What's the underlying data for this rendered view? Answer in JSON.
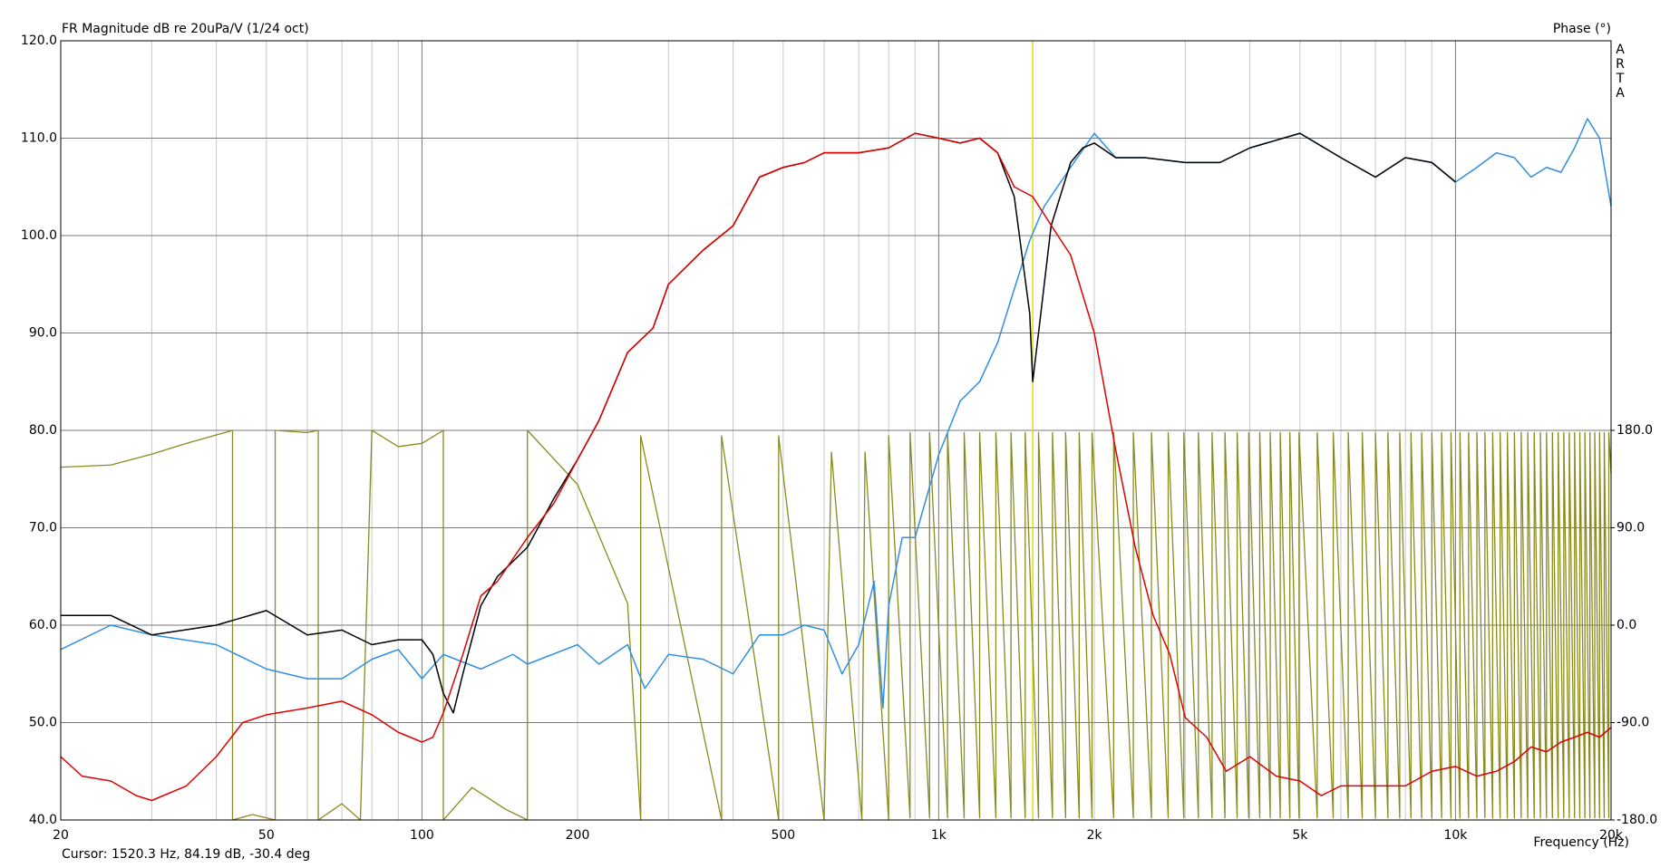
{
  "chart_data": {
    "type": "line",
    "title": "FR Magnitude dB re 20uPa/V (1/24 oct)",
    "y2_label": "Phase (°)",
    "watermark": "ARTA",
    "x_label": "Frequency (Hz)",
    "cursor": {
      "x": 1520.3,
      "label": "Cursor: 1520.3 Hz, 84.19 dB, -30.4 deg",
      "color": "#e0e000"
    },
    "log_x": true,
    "grid": true,
    "xlim": [
      20,
      20000
    ],
    "xticks": [
      20,
      50,
      100,
      200,
      500,
      {
        "value": 1000,
        "label": "1k"
      },
      {
        "value": 2000,
        "label": "2k"
      },
      {
        "value": 5000,
        "label": "5k"
      },
      {
        "value": 10000,
        "label": "10k"
      },
      {
        "value": 20000,
        "label": "20k"
      }
    ],
    "x_grid": [
      30,
      40,
      60,
      70,
      80,
      90,
      300,
      400,
      600,
      700,
      800,
      900,
      3000,
      4000,
      6000,
      7000,
      8000,
      9000
    ],
    "ylim": [
      40,
      120
    ],
    "yticks": [
      {
        "value": 40,
        "label": "40.0"
      },
      {
        "value": 50,
        "label": "50.0"
      },
      {
        "value": 60,
        "label": "60.0"
      },
      {
        "value": 70,
        "label": "70.0"
      },
      {
        "value": 80,
        "label": "80.0"
      },
      {
        "value": 90,
        "label": "90.0"
      },
      {
        "value": 100,
        "label": "100.0"
      },
      {
        "value": 110,
        "label": "110.0"
      },
      {
        "value": 120,
        "label": "120.0"
      }
    ],
    "y2lim": [
      -180,
      540
    ],
    "y2ticks": [
      {
        "value": -180,
        "label": "-180.0"
      },
      {
        "value": -90,
        "label": "-90.0"
      },
      {
        "value": 0,
        "label": "0.0"
      },
      {
        "value": 90,
        "label": "90.0"
      },
      {
        "value": 180,
        "label": "180.0"
      }
    ],
    "series": [
      {
        "color": "#2f8fe0",
        "x": [
          20,
          25,
          30,
          40,
          50,
          60,
          70,
          80,
          90,
          100,
          110,
          130,
          150,
          160,
          200,
          220,
          250,
          270,
          300,
          350,
          400,
          450,
          500,
          550,
          600,
          650,
          700,
          750,
          780,
          800,
          850,
          900,
          1000,
          1100,
          1200,
          1300,
          1400,
          1500,
          1600,
          1800,
          2000,
          2200,
          2500,
          3000,
          3500,
          4000,
          5000,
          6000,
          7000,
          8000,
          9000,
          10000,
          11000,
          12000,
          13000,
          14000,
          15000,
          16000,
          17000,
          18000,
          19000,
          20000
        ],
        "values": [
          57.5,
          60,
          59,
          58,
          55.5,
          54.5,
          54.5,
          56.5,
          57.5,
          54.5,
          57,
          55.5,
          57,
          56,
          58,
          56,
          58,
          53.5,
          57,
          56.5,
          55,
          59,
          59,
          60,
          59.5,
          55,
          58,
          64.5,
          51.5,
          62,
          69,
          69,
          77.5,
          83,
          85,
          89,
          94.5,
          99.5,
          103,
          107,
          110.5,
          108,
          108,
          107.5,
          107.5,
          109,
          110.5,
          108,
          106,
          108,
          107.5,
          105.5,
          107,
          108.5,
          108,
          106,
          107,
          106.5,
          109,
          112,
          110,
          103
        ]
      },
      {
        "color": "#e00000",
        "x": [
          20,
          22,
          25,
          28,
          30,
          35,
          40,
          45,
          50,
          60,
          70,
          80,
          90,
          100,
          105,
          110,
          120,
          130,
          140,
          160,
          180,
          200,
          220,
          250,
          280,
          300,
          350,
          400,
          450,
          500,
          550,
          600,
          700,
          800,
          900,
          1000,
          1100,
          1200,
          1300,
          1400,
          1520,
          1700,
          1800,
          2000,
          2200,
          2400,
          2600,
          2800,
          3000,
          3300,
          3600,
          4000,
          4500,
          5000,
          5500,
          6000,
          7000,
          8000,
          9000,
          10000,
          11000,
          12000,
          13000,
          14000,
          15000,
          16000,
          17000,
          18000,
          19000,
          20000
        ],
        "values": [
          46.5,
          44.5,
          44,
          42.5,
          42,
          43.5,
          46.5,
          50,
          50.8,
          51.5,
          52.2,
          50.8,
          49,
          48,
          48.5,
          51,
          57,
          63,
          64.5,
          69,
          72.5,
          77,
          81,
          88,
          90.5,
          95,
          98.5,
          101,
          106,
          107,
          107.5,
          108.5,
          108.5,
          109,
          110.5,
          110,
          109.5,
          110,
          108.5,
          105,
          104,
          100,
          98,
          90,
          78,
          68,
          61,
          57,
          50.5,
          48.5,
          45,
          46.5,
          44.5,
          44,
          42.5,
          43.5,
          43.5,
          43.5,
          45,
          45.5,
          44.5,
          45,
          46,
          47.5,
          47,
          48,
          48.5,
          49,
          48.5,
          49.5
        ]
      },
      {
        "color": "#000000",
        "x": [
          20,
          25,
          30,
          40,
          50,
          60,
          70,
          80,
          90,
          100,
          105,
          110,
          115,
          120,
          130,
          140,
          160,
          180,
          200,
          220,
          250,
          280,
          300,
          350,
          400,
          450,
          500,
          550,
          600,
          700,
          800,
          900,
          1000,
          1100,
          1200,
          1300,
          1400,
          1500,
          1520,
          1560,
          1650,
          1800,
          1900,
          2000,
          2200,
          2500,
          3000,
          3500,
          4000,
          5000,
          6000,
          7000,
          8000,
          9000,
          10000
        ],
        "values": [
          61,
          61,
          59,
          60,
          61.5,
          59,
          59.5,
          58,
          58.5,
          58.5,
          57,
          53,
          51,
          55,
          62,
          65,
          68,
          73,
          77,
          81,
          88,
          90.5,
          95,
          98.5,
          101,
          106,
          107,
          107.5,
          108.5,
          108.5,
          109,
          110.5,
          110,
          109.5,
          110,
          108.5,
          104,
          92,
          85,
          90,
          101,
          107.5,
          109,
          109.5,
          108,
          108,
          107.5,
          107.5,
          109,
          110.5,
          108,
          106,
          108,
          107.5,
          105.5
        ]
      },
      {
        "color": "#8a8a1e",
        "axis": "y2",
        "x": [
          20,
          25,
          30,
          35,
          43,
          43,
          47,
          52,
          52,
          60,
          63,
          63,
          70,
          76,
          80,
          90,
          100,
          110,
          110,
          125,
          145,
          160,
          160,
          200,
          250,
          265,
          265,
          380,
          380,
          490,
          490,
          600,
          620,
          710,
          720,
          800,
          800,
          880,
          880,
          960,
          960,
          1040,
          1040,
          1120,
          1120,
          1200,
          1200,
          1290,
          1290,
          1380,
          1380,
          1470,
          1470,
          1560,
          1560,
          1660,
          1660,
          1760,
          1760,
          1870,
          1870,
          1980,
          1980,
          2180,
          2180,
          2380,
          2380,
          2580,
          2580,
          2780,
          2780,
          2980,
          2980,
          3180,
          3180,
          3380,
          3380,
          3580,
          3580,
          3780,
          3780,
          3980,
          3980,
          4180,
          4180,
          4380,
          4380,
          4580,
          4580,
          4780,
          4780,
          4980,
          4980,
          5400,
          5400,
          5800,
          5800,
          6200,
          6200,
          6600,
          6600,
          7000,
          7000,
          7400,
          7400,
          7800,
          7800,
          8200,
          8200,
          8600,
          8600,
          9000,
          9000,
          9400,
          9400,
          9800,
          9800,
          10200,
          10200,
          10600,
          10600,
          11000,
          11000,
          11400,
          11400,
          11800,
          11800,
          12200,
          12200,
          12600,
          12600,
          13000,
          13000,
          13400,
          13400,
          13800,
          13800,
          14200,
          14200,
          14600,
          14600,
          15000,
          15000,
          15400,
          15400,
          15800,
          15800,
          16200,
          16200,
          16600,
          16600,
          17000,
          17000,
          17400,
          17400,
          17800,
          17800,
          18200,
          18200,
          18600,
          18600,
          19000,
          19000,
          19400,
          19400,
          19800,
          19800,
          20000
        ],
        "values": [
          146,
          148,
          158,
          168,
          180,
          -180,
          -175,
          -180,
          180,
          178,
          180,
          -180,
          -165,
          -180,
          180,
          165,
          168,
          180,
          -180,
          -150,
          -170,
          -180,
          180,
          130,
          20,
          -180,
          175,
          -180,
          175,
          -180,
          175,
          -180,
          160,
          -180,
          160,
          -180,
          175,
          -178,
          178,
          -178,
          178,
          -178,
          178,
          -178,
          178,
          -178,
          178,
          -178,
          178,
          -178,
          178,
          -178,
          178,
          -178,
          178,
          -178,
          178,
          -178,
          178,
          -178,
          178,
          -178,
          178,
          -178,
          178,
          -178,
          178,
          -178,
          178,
          -178,
          178,
          -178,
          178,
          -178,
          178,
          -178,
          178,
          -178,
          178,
          -178,
          178,
          -178,
          178,
          -178,
          178,
          -178,
          178,
          -178,
          178,
          -178,
          178,
          -178,
          178,
          -178,
          178,
          -178,
          178,
          -178,
          178,
          -178,
          178,
          -178,
          178,
          -178,
          178,
          -178,
          178,
          -178,
          178,
          -178,
          178,
          -178,
          178,
          -178,
          178,
          -178,
          178,
          -178,
          178,
          -178,
          178,
          -178,
          178,
          -178,
          178,
          -178,
          178,
          -178,
          178,
          -178,
          178,
          -178,
          178,
          -178,
          178,
          -178,
          178,
          -178,
          178,
          -178,
          178,
          -178,
          178,
          -178,
          178,
          -178,
          178,
          -178,
          178,
          -178,
          178,
          -178,
          178,
          -178,
          178,
          -178,
          178,
          -178,
          178,
          -178,
          178,
          -178,
          178,
          -178,
          178,
          -178,
          178,
          140
        ]
      }
    ]
  }
}
